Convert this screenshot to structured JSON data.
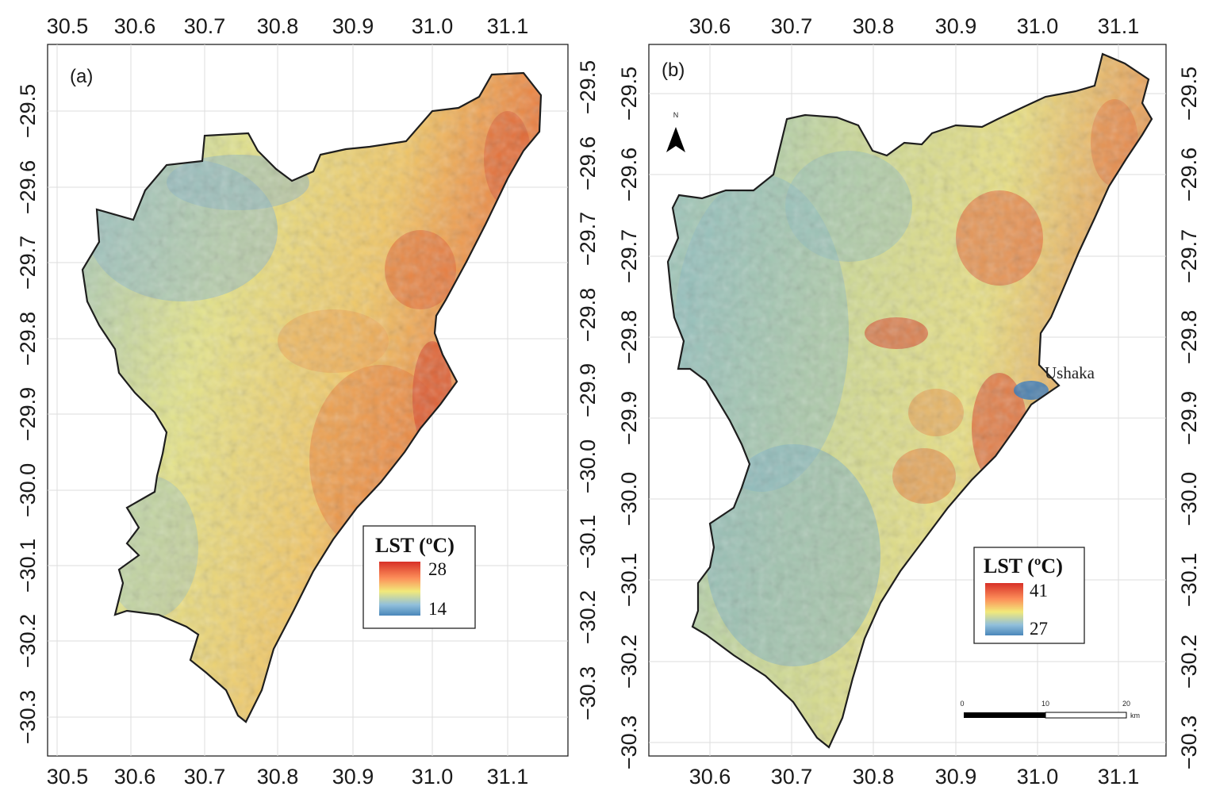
{
  "panels": [
    {
      "label": "(a)",
      "legend": {
        "title": "LST (ºC)",
        "max_label": "28",
        "min_label": "14"
      },
      "x_ticks": [
        "30.5",
        "30.6",
        "30.7",
        "30.8",
        "30.9",
        "31.0",
        "31.1"
      ],
      "y_ticks": [
        "−29.5",
        "−29.6",
        "−29.7",
        "−29.8",
        "−29.9",
        "−30.0",
        "−30.1",
        "−30.2",
        "−30.3"
      ],
      "lst_range": [
        14,
        28
      ]
    },
    {
      "label": "(b)",
      "legend": {
        "title": "LST (ºC)",
        "max_label": "41",
        "min_label": "27"
      },
      "x_ticks": [
        "30.6",
        "30.7",
        "30.8",
        "30.9",
        "31.0",
        "31.1"
      ],
      "y_ticks": [
        "−29.5",
        "−29.6",
        "−29.7",
        "−29.8",
        "−29.9",
        "−30.0",
        "−30.1",
        "−30.2",
        "−30.3"
      ],
      "lst_range": [
        27,
        41
      ],
      "north_arrow": {
        "letter": "N"
      },
      "place_label": "Ushaka",
      "scale_bar": {
        "labels": [
          "0",
          "10",
          "20"
        ],
        "unit": "km"
      }
    }
  ],
  "colors": {
    "hot": "#d73027",
    "warm": "#fc8d59",
    "mid": "#f2e97a",
    "cool": "#91bfdb",
    "cold": "#4575b4",
    "frame": "#222222",
    "grid": "#dddddd"
  }
}
